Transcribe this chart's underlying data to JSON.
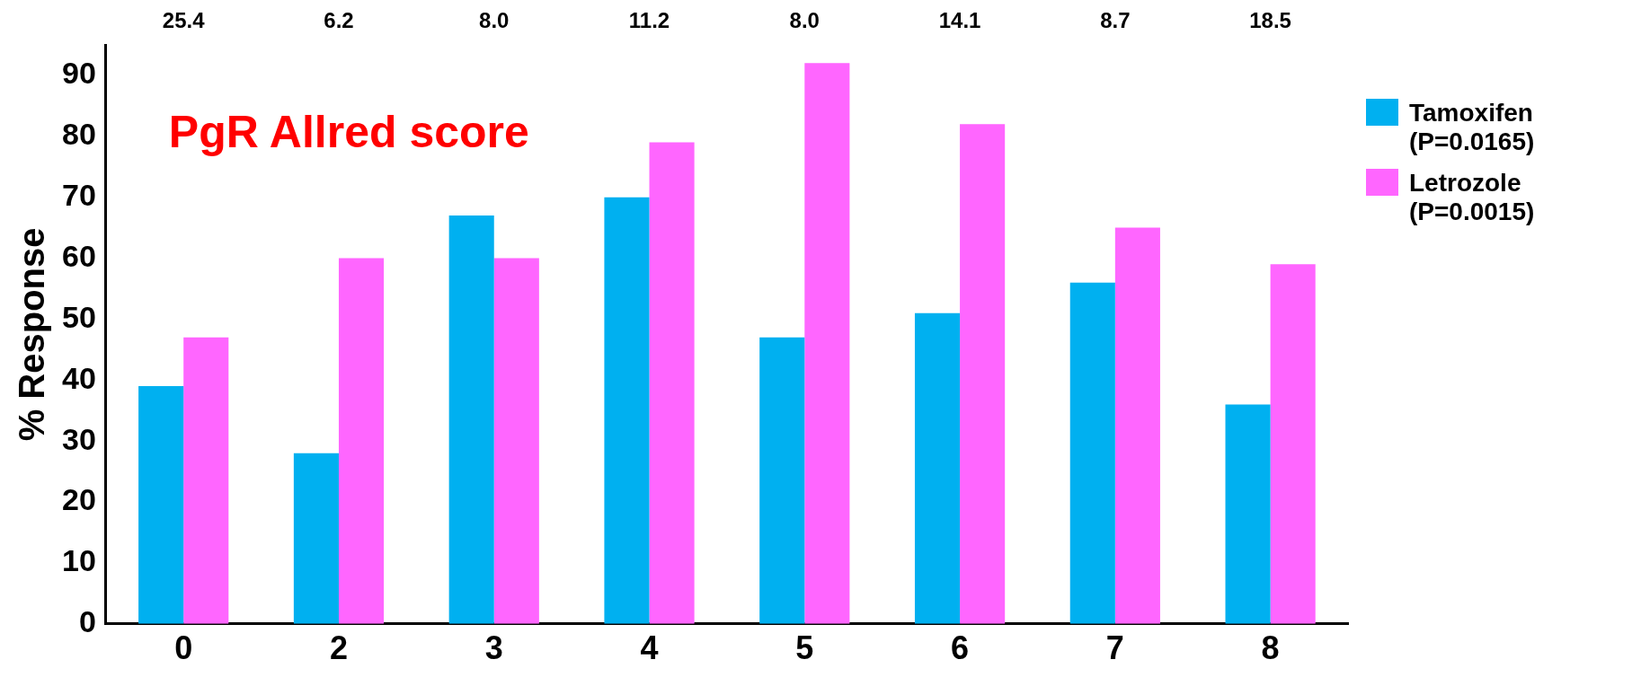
{
  "chart_data": {
    "type": "bar",
    "title": "PgR Allred score",
    "ylabel": "% Response",
    "categories": [
      "0",
      "2",
      "3",
      "4",
      "5",
      "6",
      "7",
      "8"
    ],
    "series": [
      {
        "name": "Tamoxifen (P=0.0165)",
        "color": "#00b0f0",
        "values": [
          39,
          28,
          67,
          70,
          47,
          51,
          56,
          36
        ]
      },
      {
        "name": "Letrozole (P=0.0015)",
        "color": "#ff66ff",
        "values": [
          47,
          60,
          60,
          79,
          92,
          82,
          65,
          59
        ]
      }
    ],
    "ylim": [
      0,
      95
    ],
    "yticks": [
      0,
      10,
      20,
      30,
      40,
      50,
      60,
      70,
      80,
      90
    ],
    "grid": false,
    "legend": "right",
    "annotations": [
      "25.4",
      "6.2",
      "8.0",
      "11.2",
      "8.0",
      "14.1",
      "8.7",
      "18.5"
    ]
  }
}
